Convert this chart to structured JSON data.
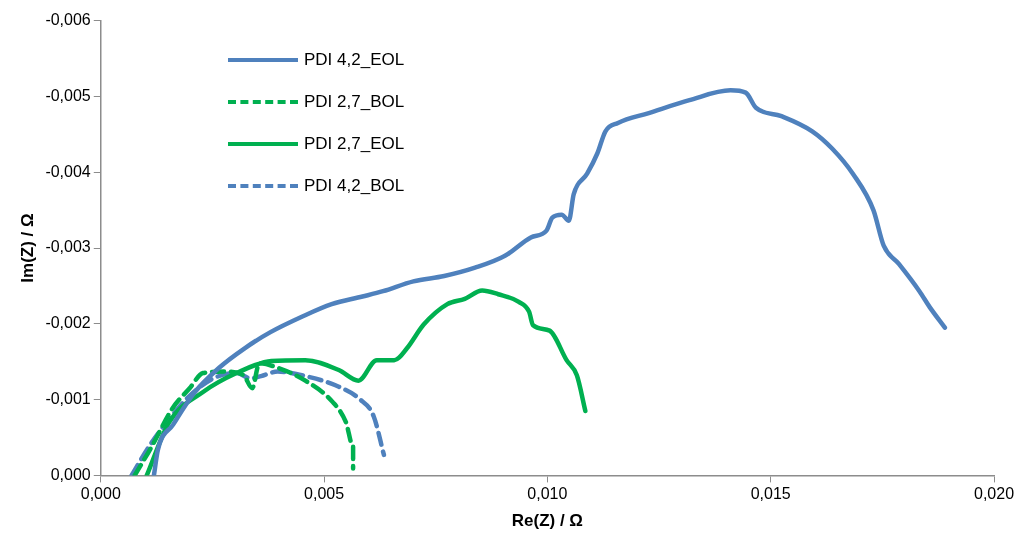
{
  "chart_data": {
    "type": "line",
    "xlabel": "Re(Z) / Ω",
    "ylabel": "Im(Z) / Ω",
    "xlim": [
      0,
      0.02
    ],
    "ylim": [
      0,
      -0.006
    ],
    "xticks": [
      {
        "value": 0,
        "label": "0,000"
      },
      {
        "value": 0.005,
        "label": "0,005"
      },
      {
        "value": 0.01,
        "label": "0,010"
      },
      {
        "value": 0.015,
        "label": "0,015"
      },
      {
        "value": 0.02,
        "label": "0,020"
      }
    ],
    "yticks": [
      {
        "value": 0,
        "label": "0,000"
      },
      {
        "value": -0.001,
        "label": "-0,001"
      },
      {
        "value": -0.002,
        "label": "-0,002"
      },
      {
        "value": -0.003,
        "label": "-0,003"
      },
      {
        "value": -0.004,
        "label": "-0,004"
      },
      {
        "value": -0.005,
        "label": "-0,005"
      },
      {
        "value": -0.006,
        "label": "-0,006"
      }
    ],
    "grid": false,
    "legend": "top left",
    "marker": "none",
    "series": [
      {
        "name": "PDI 4,2_EOL",
        "color": "#4f81bd",
        "line_style": "solid",
        "x": [
          0.00119,
          0.00128,
          0.00162,
          0.00208,
          0.00265,
          0.00323,
          0.0038,
          0.00449,
          0.00517,
          0.00586,
          0.00632,
          0.007,
          0.00769,
          0.00838,
          0.00906,
          0.00963,
          0.00998,
          0.01011,
          0.01032,
          0.01048,
          0.01059,
          0.01089,
          0.01112,
          0.0113,
          0.01158,
          0.01227,
          0.01318,
          0.0141,
          0.01444,
          0.01467,
          0.01524,
          0.01593,
          0.01638,
          0.01684,
          0.0173,
          0.01753,
          0.01787,
          0.01833,
          0.01856,
          0.0189
        ],
        "values": [
          0,
          -0.00034,
          -0.00067,
          -0.00108,
          -0.00142,
          -0.00168,
          -0.00189,
          -0.00209,
          -0.00226,
          -0.00236,
          -0.00243,
          -0.00256,
          -0.00263,
          -0.00274,
          -0.0029,
          -0.00314,
          -0.00323,
          -0.0034,
          -0.00344,
          -0.00336,
          -0.00371,
          -0.00398,
          -0.00425,
          -0.00454,
          -0.00465,
          -0.00478,
          -0.00495,
          -0.00508,
          -0.00505,
          -0.00485,
          -0.00474,
          -0.00454,
          -0.00431,
          -0.00398,
          -0.0035,
          -0.00303,
          -0.00279,
          -0.00243,
          -0.00222,
          -0.00195
        ]
      },
      {
        "name": "PDI 2,7_BOL",
        "color": "#00b050",
        "line_style": "dashed",
        "x": [
          0.00076,
          0.00114,
          0.0016,
          0.00199,
          0.00229,
          0.00281,
          0.0032,
          0.00339,
          0.00355,
          0.00396,
          0.00458,
          0.00519,
          0.00549,
          0.00565,
          0.00565
        ],
        "values": [
          0,
          -0.00038,
          -0.00088,
          -0.00115,
          -0.00135,
          -0.00137,
          -0.00132,
          -0.00115,
          -0.00148,
          -0.00142,
          -0.00125,
          -0.00097,
          -0.0007,
          -0.00038,
          -9e-05
        ]
      },
      {
        "name": "PDI 2,7_EOL",
        "color": "#00b050",
        "line_style": "solid",
        "x": [
          0.00103,
          0.00153,
          0.00229,
          0.00304,
          0.00382,
          0.00458,
          0.00533,
          0.00577,
          0.00618,
          0.00657,
          0.00686,
          0.00723,
          0.00776,
          0.00815,
          0.00854,
          0.0089,
          0.00936,
          0.00959,
          0.00968,
          0.01005,
          0.01043,
          0.01066,
          0.01085
        ],
        "values": [
          0,
          -0.0007,
          -0.0011,
          -0.00135,
          -0.00151,
          -0.00152,
          -0.00139,
          -0.00125,
          -0.00152,
          -0.00152,
          -0.00168,
          -0.00199,
          -0.00226,
          -0.00233,
          -0.00244,
          -0.00239,
          -0.00229,
          -0.00216,
          -0.00198,
          -0.00191,
          -0.00152,
          -0.00132,
          -0.00085
        ]
      },
      {
        "name": "PDI 4,2_BOL",
        "color": "#4f81bd",
        "line_style": "dashed",
        "x": [
          0.00069,
          0.00108,
          0.00153,
          0.00199,
          0.00252,
          0.00304,
          0.00336,
          0.00359,
          0.00396,
          0.00458,
          0.00533,
          0.00579,
          0.00611,
          0.00634
        ],
        "values": [
          0,
          -0.00038,
          -0.00074,
          -0.00105,
          -0.00128,
          -0.00135,
          -0.00128,
          -0.00131,
          -0.00137,
          -0.00131,
          -0.00117,
          -0.00101,
          -0.00078,
          -0.00027
        ]
      }
    ]
  }
}
